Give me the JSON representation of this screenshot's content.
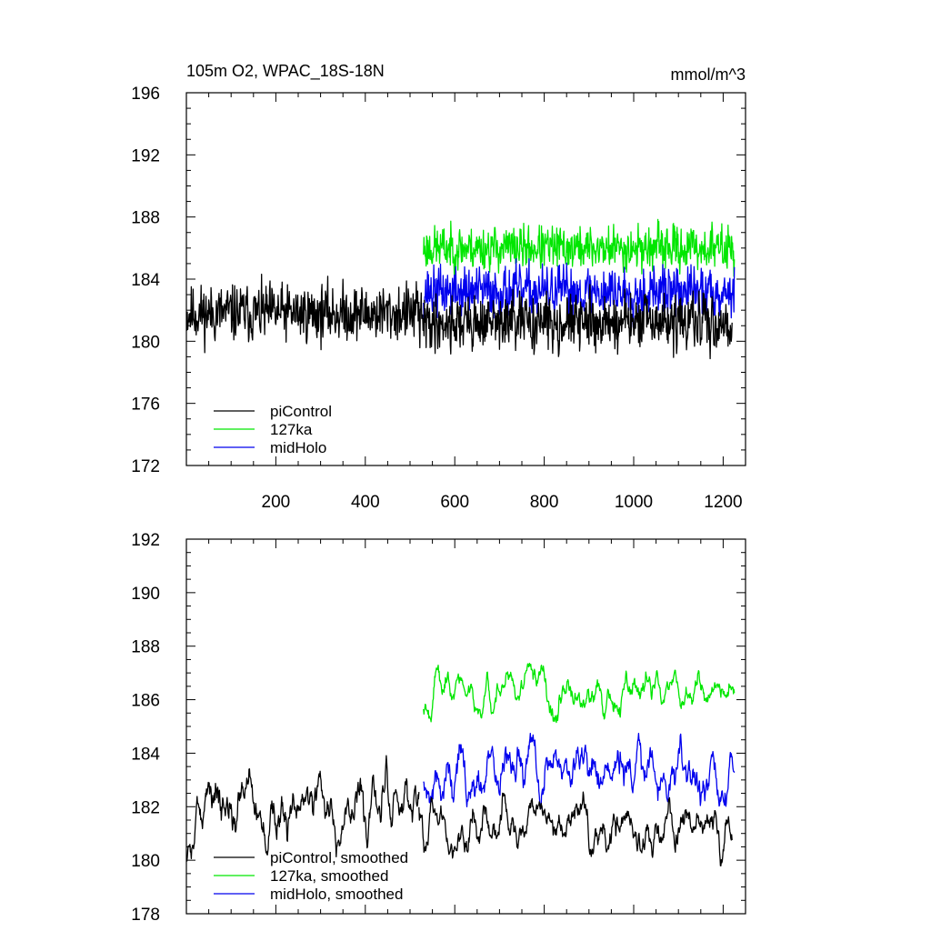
{
  "chart_data": [
    {
      "type": "line",
      "title": "105m O2, WPAC_18S-18N",
      "units": "mmol/m^3",
      "xlim": [
        0,
        1250
      ],
      "ylim": [
        172,
        196
      ],
      "xticks": [
        200,
        400,
        600,
        800,
        1000,
        1200
      ],
      "xtick_labels": [
        "200",
        "400",
        "600",
        "800",
        "1000",
        "1200"
      ],
      "yticks": [
        172,
        176,
        180,
        184,
        188,
        192,
        196
      ],
      "ytick_labels": [
        "172",
        "176",
        "180",
        "184",
        "188",
        "192",
        "196"
      ],
      "legend_position": "bottom-left",
      "series": [
        {
          "name": "piControl",
          "color": "#000000",
          "x_range": [
            1,
            520
          ],
          "mean": 181.8,
          "amplitude": 2.6,
          "noise": 0.85,
          "smooth": 0,
          "seed": 11
        },
        {
          "name": "127ka",
          "color": "#00e600",
          "x_range": [
            530,
            1225
          ],
          "mean": 186.0,
          "amplitude": 2.0,
          "noise": 0.85,
          "smooth": 0,
          "seed": 23
        },
        {
          "name": "midHolo",
          "color": "#0000ee",
          "x_range": [
            530,
            1225
          ],
          "mean": 183.2,
          "amplitude": 2.3,
          "noise": 0.85,
          "smooth": 0,
          "seed": 37
        },
        {
          "name": "piControl",
          "color": "#000000",
          "x_range": [
            520,
            1220
          ],
          "mean": 181.2,
          "amplitude": 2.5,
          "noise": 0.85,
          "smooth": 0,
          "seed": 41
        }
      ]
    },
    {
      "type": "line",
      "title": "",
      "units": "",
      "xlim": [
        0,
        1250
      ],
      "ylim": [
        178,
        192
      ],
      "xticks": [
        200,
        400,
        600,
        800,
        1000,
        1200
      ],
      "xtick_labels": [
        "",
        "",
        "",
        "",
        "",
        ""
      ],
      "yticks": [
        178,
        180,
        182,
        184,
        186,
        188,
        190,
        192
      ],
      "ytick_labels": [
        "178",
        "180",
        "182",
        "184",
        "186",
        "188",
        "190",
        "192"
      ],
      "legend_position": "bottom-left",
      "series": [
        {
          "name": "piControl, smoothed",
          "color": "#000000",
          "x_range": [
            1,
            520
          ],
          "mean": 182.0,
          "amplitude": 1.3,
          "noise": 0.8,
          "smooth": 6,
          "seed": 53
        },
        {
          "name": "127ka, smoothed",
          "color": "#00e600",
          "x_range": [
            530,
            1225
          ],
          "mean": 186.4,
          "amplitude": 0.9,
          "noise": 0.8,
          "smooth": 6,
          "seed": 67
        },
        {
          "name": "midHolo, smoothed",
          "color": "#0000ee",
          "x_range": [
            530,
            1225
          ],
          "mean": 183.3,
          "amplitude": 1.1,
          "noise": 0.8,
          "smooth": 6,
          "seed": 79
        },
        {
          "name": "piControl, smoothed",
          "color": "#000000",
          "x_range": [
            520,
            1220
          ],
          "mean": 181.3,
          "amplitude": 1.0,
          "noise": 0.8,
          "smooth": 6,
          "seed": 83
        }
      ]
    }
  ]
}
